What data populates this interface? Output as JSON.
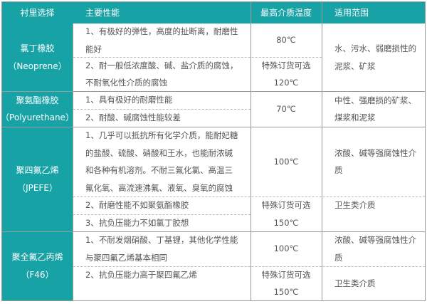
{
  "colors": {
    "header_bg": "#17a2a6",
    "text": "#555555",
    "border": "#9a9a9a"
  },
  "header": [
    "衬里选择",
    "主要性能",
    "最高介质温度",
    "适用范围"
  ],
  "rows": [
    {
      "lining": "氯丁橡胶\n（Neoprene）",
      "props": [
        "1、有极好的弹性，高度的扯断离，耐磨性\n能好",
        "2、耐一般低浓度酸、碱、盐介质的腐蚀，\n不耐氧化性介质的腐蚀"
      ],
      "temps": [
        "80℃",
        "特殊订货可选\n120℃"
      ],
      "uses": [
        "水、污水、弱磨损性的\n泥浆、矿浆"
      ]
    },
    {
      "lining": "聚氨酯橡胶\n（Polyurethane）",
      "props": [
        "1、具有极好的耐磨性能",
        "2、耐酸、碱腐蚀性能较差"
      ],
      "temps": [
        "70℃"
      ],
      "uses": [
        "中性、强磨损的矿浆、\n煤浆和泥浆"
      ]
    },
    {
      "lining": "聚四氟乙烯\n（JPEFE）",
      "props": [
        "1、几乎可以抵抗所有化学介质，能耐妃糖\n的盐酸、硫酸、硝酸和王水，也能耐浓碱\n和各种有机溶剂。不耐三氟化氯、高温三\n氟化氧、高流速沸氟、液氧、臭氧的腐蚀",
        "2、耐磨性能不如聚氨酯橡胶",
        "3、抗负压能力不如氯丁胶想"
      ],
      "temps": [
        "100℃",
        "特殊订货可选\n150℃"
      ],
      "uses": [
        "浓酸、碱等强腐蚀性介\n质",
        "卫生类介质"
      ]
    },
    {
      "lining": "聚全氟乙丙烯\n（F46）",
      "props": [
        "1、不耐发烟硝酸、丁基锂，其他化学性能\n与聚四氟乙烯基本相同",
        "2、抗负压能力高于聚四氟乙烯"
      ],
      "temps": [
        "100℃",
        "特殊订货可选\n150℃"
      ],
      "uses": [
        "浓酸、碱等强腐蚀性介\n质",
        "卫生类介质"
      ]
    }
  ]
}
